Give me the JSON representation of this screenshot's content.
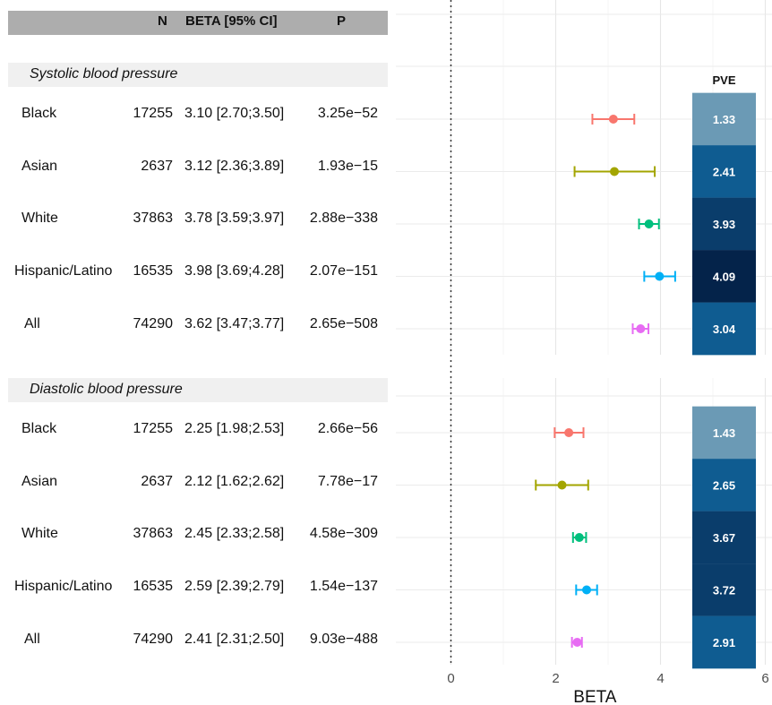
{
  "table": {
    "headers": {
      "n": "N",
      "beta": "BETA [95% CI]",
      "p": "P"
    },
    "sections": [
      {
        "title": "Systolic blood pressure",
        "rows": [
          {
            "group": "Black",
            "n": "17255",
            "beta": "3.10 [2.70;3.50]",
            "p": "3.25e−52"
          },
          {
            "group": "Asian",
            "n": "2637",
            "beta": "3.12 [2.36;3.89]",
            "p": "1.93e−15"
          },
          {
            "group": "White",
            "n": "37863",
            "beta": "3.78 [3.59;3.97]",
            "p": "2.88e−338"
          },
          {
            "group": "Hispanic/Latino",
            "n": "16535",
            "beta": "3.98 [3.69;4.28]",
            "p": "2.07e−151"
          },
          {
            "group": "All",
            "n": "74290",
            "beta": "3.62 [3.47;3.77]",
            "p": "2.65e−508"
          }
        ]
      },
      {
        "title": "Diastolic blood pressure",
        "rows": [
          {
            "group": "Black",
            "n": "17255",
            "beta": "2.25 [1.98;2.53]",
            "p": "2.66e−56"
          },
          {
            "group": "Asian",
            "n": "2637",
            "beta": "2.12 [1.62;2.62]",
            "p": "7.78e−17"
          },
          {
            "group": "White",
            "n": "37863",
            "beta": "2.45 [2.33;2.58]",
            "p": "4.58e−309"
          },
          {
            "group": "Hispanic/Latino",
            "n": "16535",
            "beta": "2.59 [2.39;2.79]",
            "p": "1.54e−137"
          },
          {
            "group": "All",
            "n": "74290",
            "beta": "2.41 [2.31;2.50]",
            "p": "9.03e−488"
          }
        ]
      }
    ]
  },
  "chart_data": {
    "type": "scatter",
    "xlabel": "BETA",
    "xlim": [
      -1.1,
      6.1
    ],
    "xticks": [
      0,
      2,
      4,
      6
    ],
    "reference_line": 0,
    "grid": true,
    "pve_label": "PVE",
    "group_colors": {
      "Black": "#f8766d",
      "Asian": "#a3a500",
      "White": "#00bf7d",
      "Hispanic/Latino": "#00b0f6",
      "All": "#e76bf3"
    },
    "panels": [
      {
        "name": "Systolic blood pressure",
        "points": [
          {
            "group": "Black",
            "beta": 3.1,
            "lo": 2.7,
            "hi": 3.5,
            "pve": "1.33"
          },
          {
            "group": "Asian",
            "beta": 3.12,
            "lo": 2.36,
            "hi": 3.89,
            "pve": "2.41"
          },
          {
            "group": "White",
            "beta": 3.78,
            "lo": 3.59,
            "hi": 3.97,
            "pve": "3.93"
          },
          {
            "group": "Hispanic/Latino",
            "beta": 3.98,
            "lo": 3.69,
            "hi": 4.28,
            "pve": "4.09"
          },
          {
            "group": "All",
            "beta": 3.62,
            "lo": 3.47,
            "hi": 3.77,
            "pve": "3.04"
          }
        ]
      },
      {
        "name": "Diastolic blood pressure",
        "points": [
          {
            "group": "Black",
            "beta": 2.25,
            "lo": 1.98,
            "hi": 2.53,
            "pve": "1.43"
          },
          {
            "group": "Asian",
            "beta": 2.12,
            "lo": 1.62,
            "hi": 2.62,
            "pve": "2.65"
          },
          {
            "group": "White",
            "beta": 2.45,
            "lo": 2.33,
            "hi": 2.58,
            "pve": "3.67"
          },
          {
            "group": "Hispanic/Latino",
            "beta": 2.59,
            "lo": 2.39,
            "hi": 2.79,
            "pve": "3.72"
          },
          {
            "group": "All",
            "beta": 2.41,
            "lo": 2.31,
            "hi": 2.5,
            "pve": "2.91"
          }
        ]
      }
    ],
    "pve_colors": [
      {
        "max": 1.6,
        "color": "#6b9ab5"
      },
      {
        "max": 3.2,
        "color": "#0f5c91"
      },
      {
        "max": 3.95,
        "color": "#0a3d6b"
      },
      {
        "max": 99,
        "color": "#04234a"
      }
    ]
  }
}
